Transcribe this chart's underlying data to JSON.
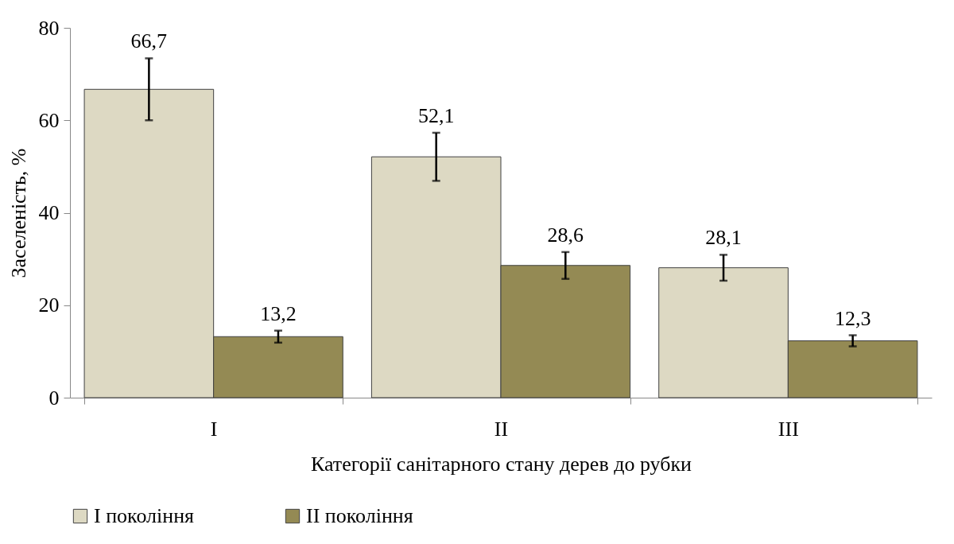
{
  "chart_data": {
    "type": "bar",
    "xlabel": "Категорії санітарного стану дерев до рубки",
    "ylabel": "Заселеність, %",
    "categories": [
      "I",
      "II",
      "III"
    ],
    "series": [
      {
        "name": "I покоління",
        "color": "#ddd9c3",
        "values": [
          66.7,
          52.1,
          28.1
        ],
        "errors": [
          6.7,
          5.2,
          2.8
        ],
        "value_labels": [
          "66,7",
          "52,1",
          "28,1"
        ]
      },
      {
        "name": "II покоління",
        "color": "#948a54",
        "values": [
          13.2,
          28.6,
          12.3
        ],
        "errors": [
          1.3,
          2.9,
          1.2
        ],
        "value_labels": [
          "13,2",
          "28,6",
          "12,3"
        ]
      }
    ],
    "ylim": [
      0,
      80
    ],
    "yticks": [
      0,
      20,
      40,
      60,
      80
    ],
    "grid": false,
    "legend": "bottom"
  }
}
